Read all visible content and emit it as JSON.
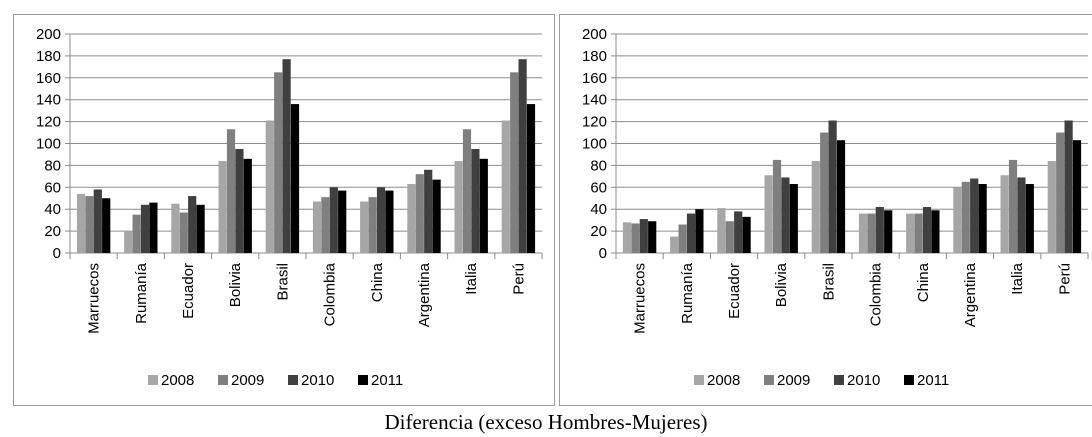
{
  "caption": "Diferencia (exceso Hombres-Mujeres)",
  "colors": {
    "2008": "#a6a6a6",
    "2009": "#7f7f7f",
    "2010": "#404040",
    "2011": "#000000"
  },
  "chart_data": [
    {
      "type": "bar",
      "categories": [
        "Marruecos",
        "Rumanía",
        "Ecuador",
        "Bolivia",
        "Brasil",
        "Colombia",
        "China",
        "Argentina",
        "Italia",
        "Perú"
      ],
      "ylim": [
        0,
        200
      ],
      "yticks": [
        0,
        20,
        40,
        60,
        80,
        100,
        120,
        140,
        160,
        180,
        200
      ],
      "grid": true,
      "legend_position": "bottom",
      "series": [
        {
          "name": "2008",
          "values": [
            54,
            20,
            45,
            84,
            121,
            47,
            47,
            63,
            84,
            121
          ]
        },
        {
          "name": "2009",
          "values": [
            52,
            35,
            37,
            113,
            165,
            51,
            51,
            72,
            113,
            165
          ]
        },
        {
          "name": "2010",
          "values": [
            58,
            44,
            52,
            95,
            177,
            60,
            60,
            76,
            95,
            177
          ]
        },
        {
          "name": "2011",
          "values": [
            50,
            46,
            44,
            86,
            136,
            57,
            57,
            67,
            86,
            136
          ]
        }
      ]
    },
    {
      "type": "bar",
      "categories": [
        "Marruecos",
        "Rumanía",
        "Ecuador",
        "Bolivia",
        "Brasil",
        "Colombia",
        "China",
        "Argentina",
        "Italia",
        "Perú"
      ],
      "ylim": [
        0,
        200
      ],
      "yticks": [
        0,
        20,
        40,
        60,
        80,
        100,
        120,
        140,
        160,
        180,
        200
      ],
      "grid": true,
      "legend_position": "bottom",
      "series": [
        {
          "name": "2008",
          "values": [
            28,
            15,
            41,
            71,
            84,
            36,
            36,
            60,
            71,
            84
          ]
        },
        {
          "name": "2009",
          "values": [
            27,
            26,
            29,
            85,
            110,
            36,
            36,
            65,
            85,
            110
          ]
        },
        {
          "name": "2010",
          "values": [
            31,
            36,
            38,
            69,
            121,
            42,
            42,
            68,
            69,
            121
          ]
        },
        {
          "name": "2011",
          "values": [
            29,
            40,
            33,
            63,
            103,
            39,
            39,
            63,
            63,
            103
          ]
        }
      ]
    }
  ]
}
